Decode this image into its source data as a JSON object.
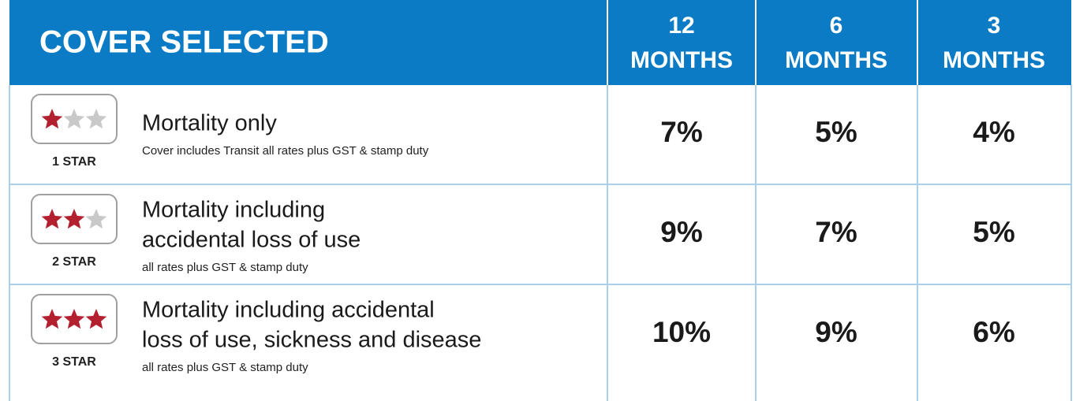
{
  "header": {
    "title": "COVER SELECTED",
    "columns": [
      {
        "number": "12",
        "unit": "MONTHS"
      },
      {
        "number": "6",
        "unit": "MONTHS"
      },
      {
        "number": "3",
        "unit": "MONTHS"
      }
    ]
  },
  "rows": [
    {
      "stars": 1,
      "badge": "1 STAR",
      "title": [
        "Mortality only"
      ],
      "subtitle": "Cover includes Transit all rates plus GST & stamp duty",
      "rates": [
        "7%",
        "5%",
        "4%"
      ]
    },
    {
      "stars": 2,
      "badge": "2 STAR",
      "title": [
        "Mortality including",
        "accidental loss of use"
      ],
      "subtitle": "all rates plus GST & stamp duty",
      "rates": [
        "9%",
        "7%",
        "5%"
      ]
    },
    {
      "stars": 3,
      "badge": "3 STAR",
      "title": [
        "Mortality including accidental",
        "loss of use, sickness and disease"
      ],
      "subtitle": "all rates plus GST & stamp duty",
      "rates": [
        "10%",
        "9%",
        "6%"
      ]
    }
  ]
}
